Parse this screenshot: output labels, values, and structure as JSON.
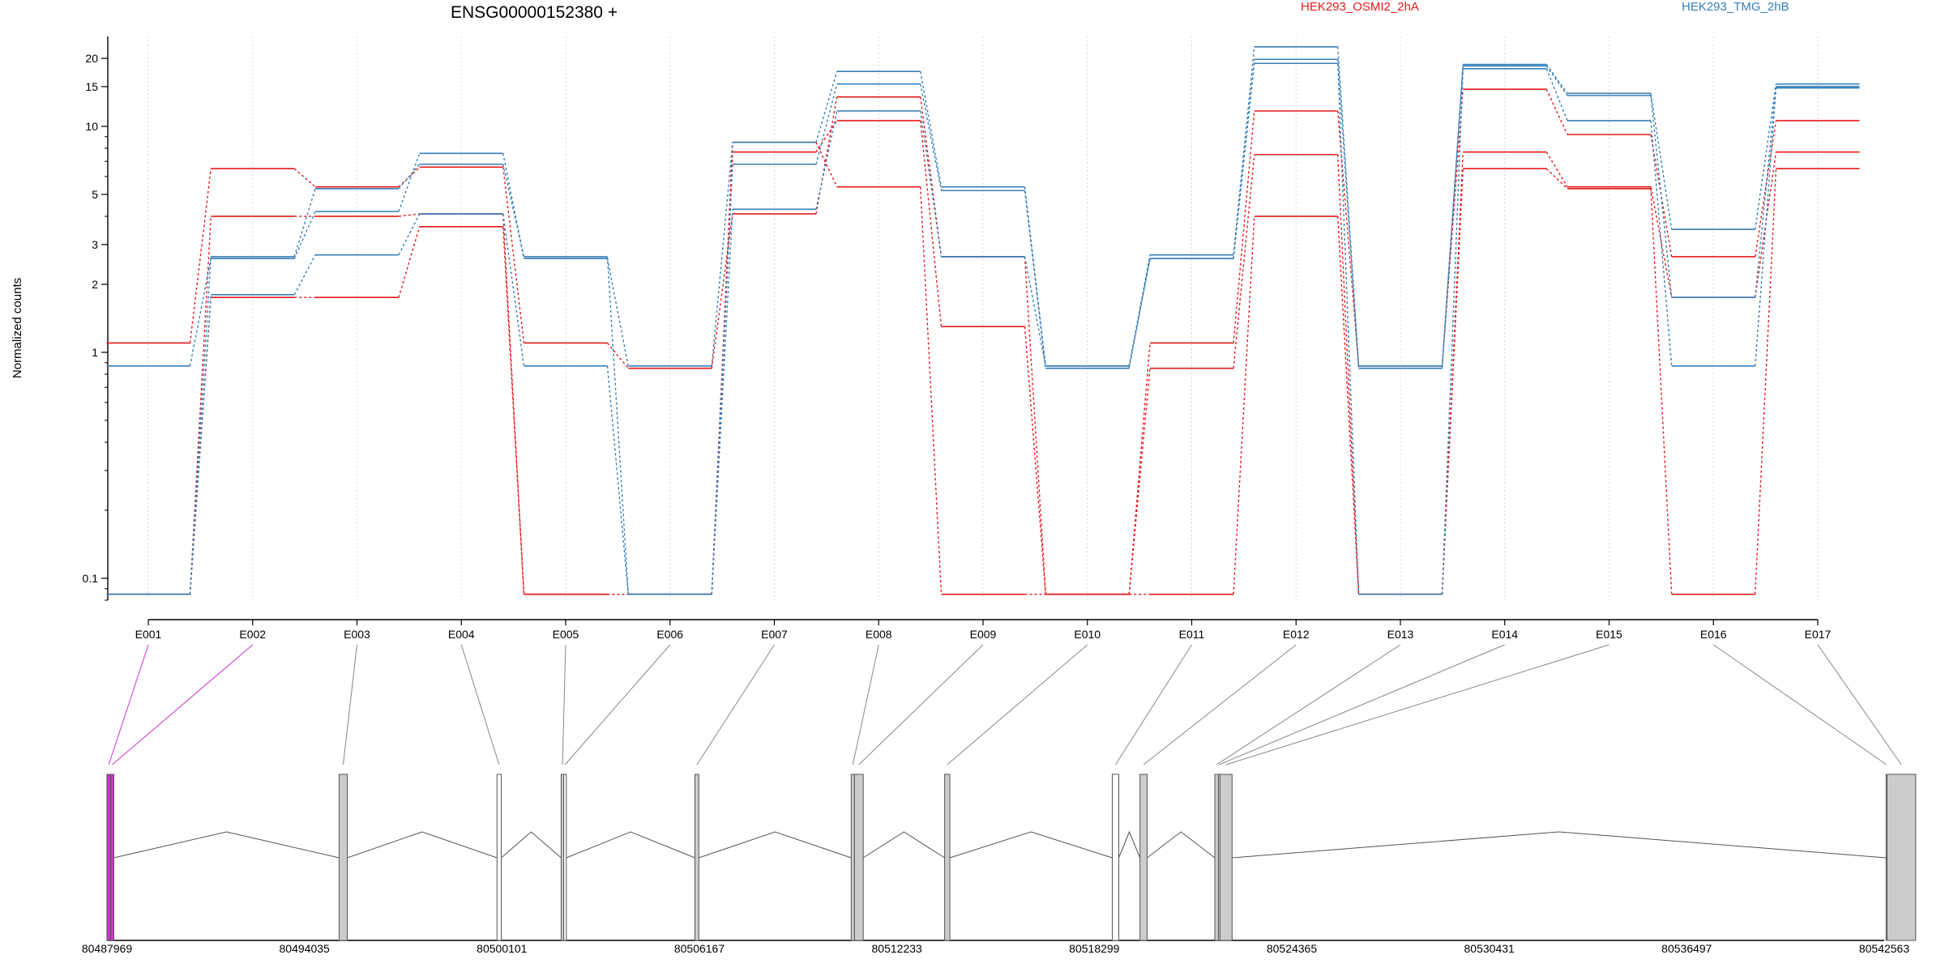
{
  "chart_data": {
    "type": "line",
    "title": "ENSG00000152380 +",
    "ylabel": "Normalized counts",
    "yscale": "log",
    "ylim": [
      0.08,
      25
    ],
    "y_ticks": [
      0.1,
      1,
      2,
      3,
      5,
      10,
      15,
      20
    ],
    "exons": [
      "E001",
      "E002",
      "E003",
      "E004",
      "E005",
      "E006",
      "E007",
      "E008",
      "E009",
      "E010",
      "E011",
      "E012",
      "E013",
      "E014",
      "E015",
      "E016",
      "E017"
    ],
    "series": [
      {
        "name": "HEK293_OSMI2_2hA",
        "color": "#e41a1c",
        "replicates": [
          [
            1.1,
            6.5,
            5.4,
            6.6,
            1.1,
            0.85,
            4.1,
            13.5,
            2.65,
            0.085,
            1.1,
            11.7,
            0.87,
            14.6,
            9.2,
            2.65,
            10.6
          ],
          [
            0.085,
            4.0,
            4.0,
            4.1,
            0.085,
            0.085,
            7.7,
            10.6,
            1.3,
            0.085,
            0.85,
            7.5,
            0.085,
            7.7,
            5.4,
            1.75,
            7.7
          ],
          [
            0.085,
            1.75,
            1.75,
            3.6,
            0.085,
            0.085,
            8.5,
            5.4,
            0.085,
            0.085,
            0.085,
            4.0,
            0.085,
            6.5,
            5.3,
            0.085,
            6.5
          ]
        ]
      },
      {
        "name": "HEK293_TMG_2hB",
        "color": "#377eb8",
        "replicates": [
          [
            0.87,
            2.6,
            4.2,
            7.6,
            2.6,
            0.87,
            8.5,
            17.5,
            5.4,
            0.87,
            2.7,
            22.5,
            0.87,
            18.8,
            14.0,
            3.5,
            15.4
          ],
          [
            0.085,
            2.65,
            5.3,
            6.8,
            2.65,
            0.085,
            6.8,
            15.4,
            5.2,
            0.85,
            2.6,
            19.8,
            0.85,
            18.5,
            13.7,
            1.75,
            15.0
          ],
          [
            0.085,
            1.8,
            2.7,
            4.1,
            0.87,
            0.085,
            4.3,
            11.7,
            2.65,
            0.87,
            2.6,
            19.0,
            0.085,
            18.0,
            10.6,
            0.87,
            14.8
          ]
        ]
      }
    ],
    "gene_model": {
      "coordinate_ticks": [
        "80487969",
        "80494035",
        "80500101",
        "80506167",
        "80512233",
        "80518299",
        "80524365",
        "80530431",
        "80536497",
        "80542563"
      ],
      "genomic_range": [
        80487969,
        80542563
      ],
      "exon_blocks": [
        {
          "exon": "E001",
          "start": 80487969,
          "end": 80488080,
          "color": "#cc33cc"
        },
        {
          "exon": "E002",
          "start": 80488080,
          "end": 80488180,
          "color": "#cc33cc"
        },
        {
          "exon": "E003",
          "start": 80495100,
          "end": 80495350,
          "color": "#cccccc"
        },
        {
          "exon": "E004",
          "start": 80499950,
          "end": 80500080,
          "color": "#ffffff"
        },
        {
          "exon": "E005",
          "start": 80501920,
          "end": 80502000,
          "color": "#cccccc"
        },
        {
          "exon": "E006",
          "start": 80502000,
          "end": 80502080,
          "color": "#ffffff"
        },
        {
          "exon": "E007",
          "start": 80506030,
          "end": 80506150,
          "color": "#cccccc"
        },
        {
          "exon": "E008",
          "start": 80510830,
          "end": 80510930,
          "color": "#cccccc"
        },
        {
          "exon": "E009",
          "start": 80510930,
          "end": 80511200,
          "color": "#cccccc"
        },
        {
          "exon": "E010",
          "start": 80513700,
          "end": 80513860,
          "color": "#cccccc"
        },
        {
          "exon": "E011",
          "start": 80518850,
          "end": 80519050,
          "color": "#ffffff"
        },
        {
          "exon": "E012",
          "start": 80519700,
          "end": 80519920,
          "color": "#cccccc"
        },
        {
          "exon": "E013",
          "start": 80522000,
          "end": 80522110,
          "color": "#cccccc"
        },
        {
          "exon": "E014",
          "start": 80522110,
          "end": 80522160,
          "color": "#cccccc"
        },
        {
          "exon": "E015",
          "start": 80522160,
          "end": 80522530,
          "color": "#cccccc"
        },
        {
          "exon": "E016",
          "start": 80542620,
          "end": 80542650,
          "color": "#cccccc"
        },
        {
          "exon": "E017",
          "start": 80542650,
          "end": 80543530,
          "color": "#cccccc"
        }
      ]
    }
  }
}
